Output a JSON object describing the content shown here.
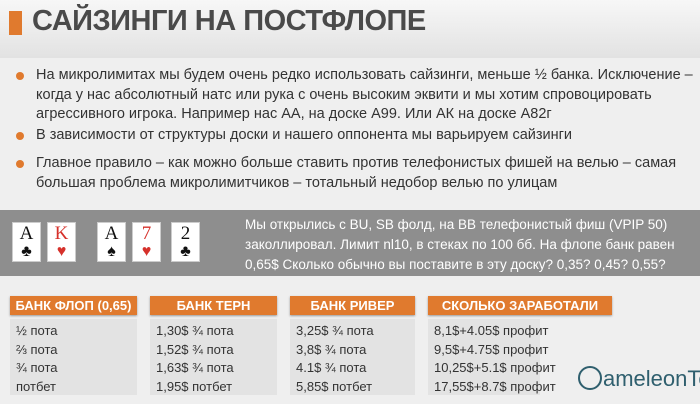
{
  "title": "САЙЗИНГИ НА ПОСТФЛОПЕ",
  "bullets": [
    "На микролимитах мы будем очень редко использовать сайзинги, меньше ½ банка. Исключение – когда у нас абсолютный натс или рука с очень высоким эквити и мы хотим спровоцировать агрессивного игрока. Например нас АА, на доске А99. Или АК на доске А82г",
    "В зависимости от структуры доски и нашего оппонента мы варьируем сайзинги",
    "Главное правило – как можно больше ставить против телефонистых фишей на велью – самая большая проблема микролимитчиков – тотальный недобор велью по улицам"
  ],
  "cards": [
    {
      "rank": "A",
      "suit": "♣",
      "color": "#111111"
    },
    {
      "rank": "K",
      "suit": "♥",
      "color": "#d6312b"
    },
    {
      "rank": "A",
      "suit": "♠",
      "color": "#111111"
    },
    {
      "rank": "7",
      "suit": "♥",
      "color": "#d6312b"
    },
    {
      "rank": "2",
      "suit": "♣",
      "color": "#111111"
    }
  ],
  "situation": [
    "Мы открылись с BU, SB фолд, на BB телефонистый фиш (VPIP 50)",
    "заколлировал. Лимит nl10, в стеках по 100 бб. На флопе банк равен",
    "0,65$ Сколько обычно вы поставите в эту доску? 0,35? 0,45? 0,55?"
  ],
  "table": [
    {
      "header": "БАНК ФЛОП (0,65)",
      "rows": [
        "½  пота",
        "⅔  пота",
        "¾ пота",
        "потбет"
      ]
    },
    {
      "header": "БАНК ТЕРН",
      "rows": [
        "1,30$ ¾ пота",
        "1,52$ ¾ пота",
        "1,63$ ¾ пота",
        "1,95$ потбет"
      ]
    },
    {
      "header": "БАНК РИВЕР",
      "rows": [
        "3,25$ ¾ пота",
        "3,8$ ¾ пота",
        "4.1$ ¾ пота",
        "5,85$ потбет"
      ]
    },
    {
      "header": "СКОЛЬКО ЗАРАБОТАЛИ",
      "rows": [
        "8,1$+4.05$ профит",
        "9,5$+4.75$ профит",
        "10,25$+5.1$ профит",
        "17,55$+8.7$ профит"
      ]
    }
  ],
  "logo": "ameleonTe",
  "accent": "#e07a2e"
}
